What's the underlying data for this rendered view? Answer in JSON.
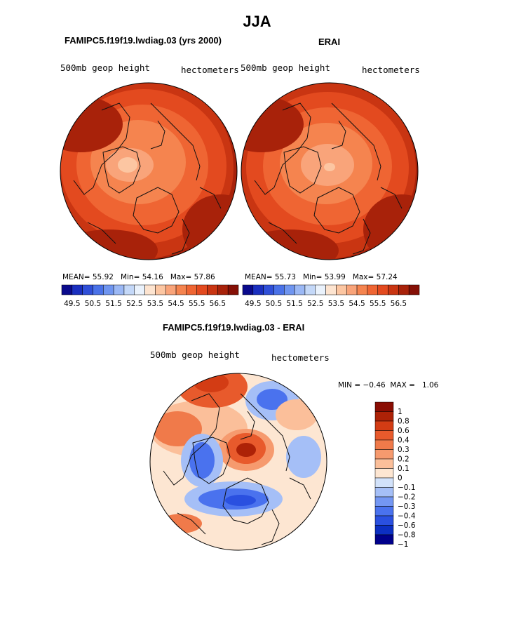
{
  "title": "JJA",
  "panels": [
    {
      "id": "model",
      "case_title": "FAMIPC5.f19f19.lwdiag.03 (yrs 2000)",
      "field": "500mb geop height",
      "units": "hectometers",
      "mean_label": "MEAN=",
      "mean": "55.92",
      "min_label": "Min=",
      "min": "54.16",
      "max_label": "Max=",
      "max": "57.86"
    },
    {
      "id": "obs",
      "case_title": "ERAI",
      "field": "500mb geop height",
      "units": "hectometers",
      "mean_label": "MEAN=",
      "mean": "55.73",
      "min_label": "Min=",
      "min": "53.99",
      "max_label": "Max=",
      "max": "57.24"
    }
  ],
  "diff_panel": {
    "case_title": "FAMIPC5.f19f19.lwdiag.03 - ERAI",
    "field": "500mb geop height",
    "units": "hectometers",
    "min_label": "MIN =",
    "min": "−0.46",
    "max_label": "MAX =",
    "max": "1.06"
  },
  "chart_data": {
    "type": "heatmap",
    "projection": "north polar stereographic",
    "abs_colorbar": {
      "colors": [
        "#0a0a8c",
        "#1a2fbf",
        "#2f4fd8",
        "#4a72e8",
        "#6f95f0",
        "#9bb8f5",
        "#c4d8f8",
        "#eaf2fc",
        "#fde4d0",
        "#fcc6a2",
        "#f9a47a",
        "#f5844f",
        "#ef6533",
        "#e34a1f",
        "#c93512",
        "#a8220a",
        "#851006"
      ],
      "tick_labels": [
        "49.5",
        "50.5",
        "51.5",
        "52.5",
        "53.5",
        "54.5",
        "55.5",
        "56.5"
      ],
      "tick_positions": [
        1,
        3,
        5,
        7,
        9,
        11,
        13,
        15
      ]
    },
    "diff_colorbar": {
      "colors": [
        "#00008b",
        "#0c2fc2",
        "#2a50e0",
        "#4a72ee",
        "#7497f3",
        "#a5bff7",
        "#d2e2fa",
        "#fde6d2",
        "#fbbf9a",
        "#f69a6e",
        "#f07a4a",
        "#e85a2c",
        "#d33c14",
        "#ad2207",
        "#8a0d03"
      ],
      "labels": [
        "1",
        "0.8",
        "0.6",
        "0.4",
        "0.3",
        "0.2",
        "0.1",
        "0",
        "−0.1",
        "−0.2",
        "−0.3",
        "−0.4",
        "−0.6",
        "−0.8",
        "−1"
      ]
    }
  }
}
